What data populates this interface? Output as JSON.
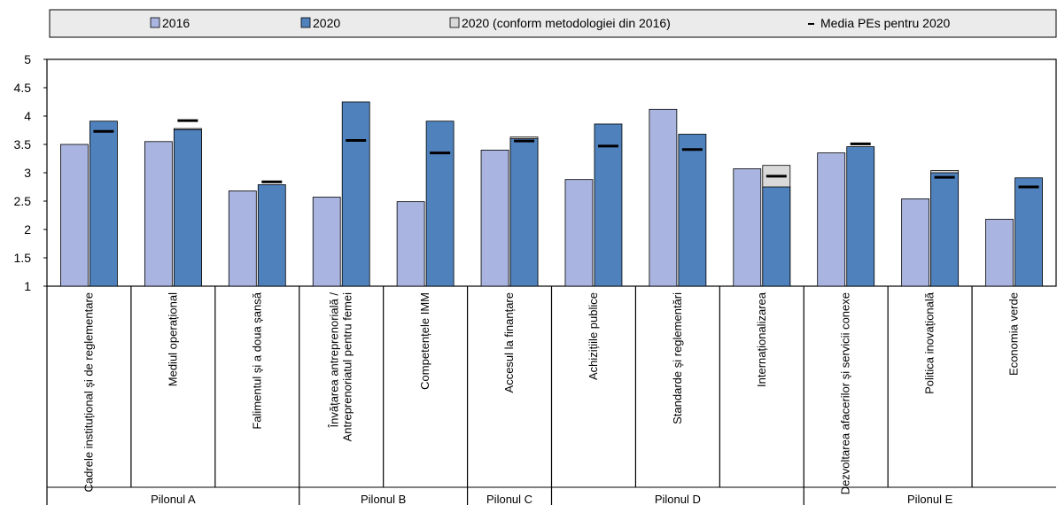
{
  "chart_data": {
    "type": "bar",
    "title": "",
    "xlabel": "",
    "ylabel": "",
    "ylim": [
      1,
      5
    ],
    "yticks": [
      "1",
      "1.5",
      "2",
      "2.5",
      "3",
      "3.5",
      "4",
      "4.5",
      "5"
    ],
    "grid": false,
    "legend_position": "top",
    "legend": [
      {
        "label": "2016",
        "kind": "bar",
        "color": "#a9b5e0"
      },
      {
        "label": "2020",
        "kind": "bar",
        "color": "#4f81bd"
      },
      {
        "label": "2020 (conform metodologiei din 2016)",
        "kind": "bar",
        "color": "#d9d9d9"
      },
      {
        "label": "Media PEs pentru 2020",
        "kind": "marker",
        "color": "#000000"
      }
    ],
    "categories": [
      "Cadrele instituțional și de reglementare",
      "Mediul operațional",
      "Falimentul și a doua șansă",
      "Învățarea antreprenorială / Antreprenoriatul pentru femei",
      "Competențele IMM",
      "Accesul la finanțare",
      "Achizițiile publice",
      "Standarde și reglementări",
      "Internaționalizarea",
      "Dezvoltarea afacerilor și servicii conexe",
      "Politica inovațională",
      "Economia verde"
    ],
    "category_lines": [
      [
        "Cadrele instituțional și de reglementare"
      ],
      [
        "Mediul operațional"
      ],
      [
        "Falimentul și a doua șansă"
      ],
      [
        "Învățarea antreprenorială /",
        "Antreprenoriatul pentru femei"
      ],
      [
        "Competențele IMM"
      ],
      [
        "Accesul la finanțare"
      ],
      [
        "Achizițiile publice"
      ],
      [
        "Standarde și reglementări"
      ],
      [
        "Internaționalizarea"
      ],
      [
        "Dezvoltarea afacerilor și servicii conexe"
      ],
      [
        "Politica inovațională"
      ],
      [
        "Economia verde"
      ]
    ],
    "series": [
      {
        "name": "2016",
        "values": [
          3.5,
          3.55,
          2.68,
          2.57,
          2.49,
          3.4,
          2.88,
          4.12,
          3.07,
          3.35,
          2.54,
          2.18
        ]
      },
      {
        "name": "2020",
        "values": [
          3.91,
          3.76,
          2.79,
          4.25,
          3.91,
          3.6,
          3.86,
          3.68,
          2.75,
          3.46,
          3.0,
          2.91
        ]
      },
      {
        "name": "2020 (conform metodologiei din 2016)",
        "values": [
          null,
          3.78,
          null,
          null,
          null,
          3.63,
          null,
          null,
          3.13,
          null,
          3.04,
          null
        ]
      },
      {
        "name": "Media PEs pentru 2020",
        "values": [
          3.73,
          3.92,
          2.84,
          3.57,
          3.35,
          3.56,
          3.47,
          3.41,
          2.94,
          3.51,
          2.92,
          2.75
        ]
      }
    ],
    "groups": [
      {
        "label": "Pilonul A",
        "start": 0,
        "end": 2
      },
      {
        "label": "Pilonul B",
        "start": 3,
        "end": 4
      },
      {
        "label": "Pilonul C",
        "start": 5,
        "end": 5
      },
      {
        "label": "Pilonul D",
        "start": 6,
        "end": 8
      },
      {
        "label": "Pilonul E",
        "start": 9,
        "end": 11
      }
    ]
  }
}
